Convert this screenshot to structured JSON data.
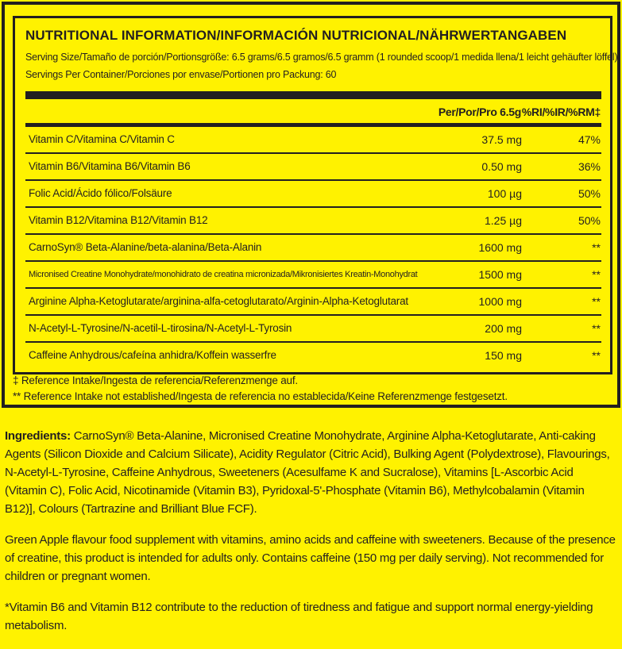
{
  "title": "NUTRITIONAL INFORMATION/INFORMACIÓN NUTRICIONAL/NÄHRWERTANGABEN",
  "serving_size": "Serving Size/Tamaño de porción/Portionsgröße: 6.5 grams/6.5 gramos/6.5 gramm (1 rounded scoop/1 medida llena/1 leicht gehäufter löffel)",
  "servings_per_container": "Servings Per Container/Porciones por envase/Portionen pro Packung: 60",
  "columns": {
    "amount": "Per/Por/Pro 6.5g",
    "ri": "%RI/%IR/%RM‡"
  },
  "rows": [
    {
      "name": "Vitamin C/Vitamina C/Vitamin C",
      "amount": "37.5 mg",
      "ri": "47%"
    },
    {
      "name": "Vitamin B6/Vitamina B6/Vitamin B6",
      "amount": "0.50 mg",
      "ri": "36%"
    },
    {
      "name": "Folic Acid/Ácido fólico/Folsäure",
      "amount": "100 µg",
      "ri": "50%"
    },
    {
      "name": "Vitamin B12/Vitamina B12/Vitamin B12",
      "amount": "1.25 µg",
      "ri": "50%"
    },
    {
      "name": "CarnoSyn® Beta-Alanine/beta-alanina/Beta-Alanin",
      "amount": "1600 mg",
      "ri": "**"
    },
    {
      "name": "Micronised Creatine Monohydrate/monohidrato de creatina micronizada/Mikronisiertes Kreatin-Monohydrat",
      "amount": "1500 mg",
      "ri": "**"
    },
    {
      "name": "Arginine Alpha-Ketoglutarate/arginina-alfa-cetoglutarato/Arginin-Alpha-Ketoglutarat",
      "amount": "1000 mg",
      "ri": "**"
    },
    {
      "name": "N-Acetyl-L-Tyrosine/N-acetil-L-tirosina/N-Acetyl-L-Tyrosin",
      "amount": "200 mg",
      "ri": "**"
    },
    {
      "name": "Caffeine Anhydrous/cafeína anhidra/Koffein wasserfre",
      "amount": "150 mg",
      "ri": "**"
    }
  ],
  "footnotes": [
    "‡ Reference Intake/Ingesta de referencia/Referenzmenge auf.",
    "** Reference Intake not established/Ingesta de referencia no establecida/Keine Referenzmenge festgesetzt."
  ],
  "ingredients_label": "Ingredients:",
  "ingredients": " CarnoSyn® Beta-Alanine, Micronised Creatine Monohydrate, Arginine Alpha-Ketoglutarate, Anti-caking Agents (Silicon Dioxide and Calcium Silicate), Acidity Regulator (Citric Acid), Bulking Agent (Polydextrose), Flavourings, N-Acetyl-L-Tyrosine, Caffeine Anhydrous, Sweeteners (Acesulfame K and Sucralose), Vitamins [L-Ascorbic Acid (Vitamin C), Folic Acid, Nicotinamide (Vitamin B3), Pyridoxal-5'-Phosphate (Vitamin B6), Methylcobalamin (Vitamin B12)], Colours (Tartrazine and Brilliant Blue FCF).",
  "description": "Green Apple flavour food supplement with vitamins, amino acids and caffeine with sweeteners. Because of the presence of creatine, this product is intended for adults only. Contains caffeine (150 mg per daily serving). Not recommended for children or pregnant women.",
  "claim": "*Vitamin B6 and Vitamin B12 contribute to the reduction of tiredness and fatigue and support normal energy-yielding metabolism.",
  "colors": {
    "background": "#fff200",
    "ink": "#231f20"
  }
}
